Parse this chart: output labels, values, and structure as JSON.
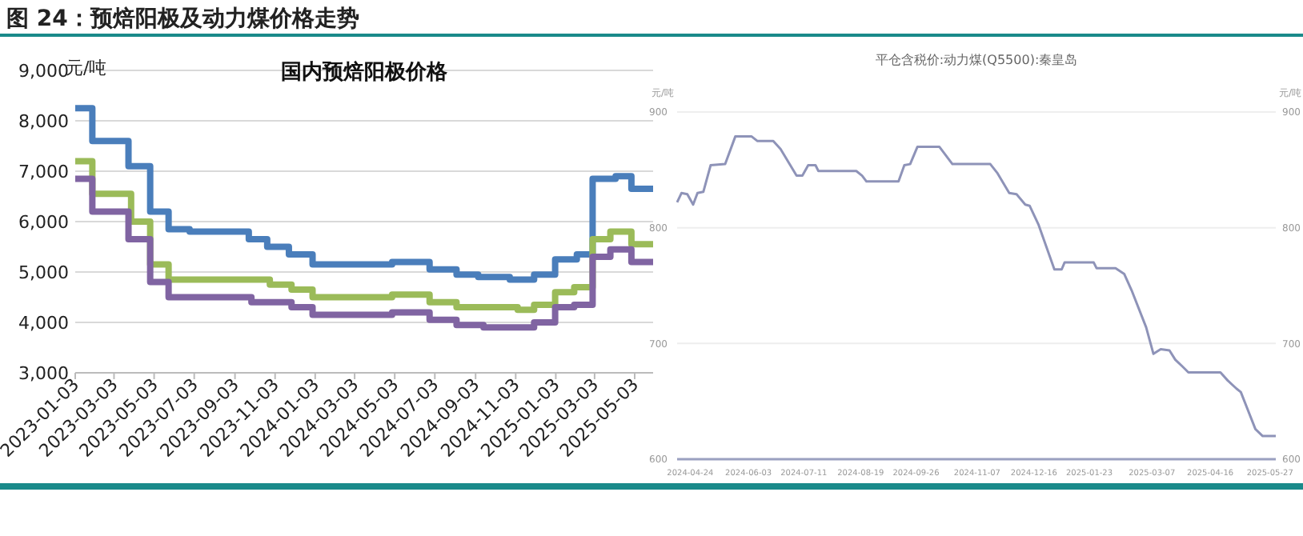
{
  "chart_data": [
    {
      "type": "step",
      "title": "图 24：预焙阳极及动力煤价格走势",
      "subtitle": "国内预焙阳极价格",
      "ylabel": "元/吨",
      "grid": "y",
      "xlim": [
        "2023-01-03",
        "2025-05-31"
      ],
      "ylim": [
        3000,
        9000
      ],
      "yticks": [
        {
          "value": 3000,
          "label": "3,000"
        },
        {
          "value": 4000,
          "label": "4,000"
        },
        {
          "value": 5000,
          "label": "5,000"
        },
        {
          "value": 6000,
          "label": "6,000"
        },
        {
          "value": 7000,
          "label": "7,000"
        },
        {
          "value": 8000,
          "label": "8,000"
        },
        {
          "value": 9000,
          "label": "9,000"
        }
      ],
      "xticks": [
        "2023-01-03",
        "2023-03-03",
        "2023-05-03",
        "2023-07-03",
        "2023-09-03",
        "2023-11-03",
        "2024-01-03",
        "2024-03-03",
        "2024-05-03",
        "2024-07-03",
        "2024-09-03",
        "2024-11-03",
        "2025-01-03",
        "2025-03-03",
        "2025-05-03"
      ],
      "series": [
        {
          "color": "#4a7ebb",
          "x": [
            "2023-01-03",
            "2023-01-29",
            "2023-03-25",
            "2023-04-27",
            "2023-05-25",
            "2023-06-26",
            "2023-09-24",
            "2023-10-22",
            "2023-11-24",
            "2023-12-30",
            "2024-04-29",
            "2024-06-25",
            "2024-08-05",
            "2024-09-07",
            "2024-10-25",
            "2024-12-01",
            "2025-01-02",
            "2025-02-04",
            "2025-02-28",
            "2025-04-04",
            "2025-04-28",
            "2025-05-31"
          ],
          "values": [
            8250,
            7600,
            7100,
            6200,
            5850,
            5800,
            5650,
            5500,
            5350,
            5150,
            5200,
            5050,
            4950,
            4900,
            4850,
            4950,
            5250,
            5350,
            6850,
            6900,
            6650,
            6650
          ]
        },
        {
          "color": "#9bbb59",
          "x": [
            "2023-01-03",
            "2023-01-29",
            "2023-03-29",
            "2023-04-27",
            "2023-05-25",
            "2023-10-26",
            "2023-11-28",
            "2023-12-30",
            "2024-04-29",
            "2024-06-25",
            "2024-08-05",
            "2024-11-06",
            "2024-12-01",
            "2025-01-02",
            "2025-01-31",
            "2025-02-28",
            "2025-03-27",
            "2025-04-28",
            "2025-05-31"
          ],
          "values": [
            7200,
            6550,
            6000,
            5150,
            4850,
            4750,
            4650,
            4500,
            4550,
            4400,
            4300,
            4250,
            4350,
            4600,
            4700,
            5650,
            5800,
            5550,
            5550
          ]
        },
        {
          "color": "#8064a2",
          "x": [
            "2023-01-03",
            "2023-01-29",
            "2023-03-25",
            "2023-04-27",
            "2023-05-25",
            "2023-09-28",
            "2023-11-28",
            "2023-12-30",
            "2024-04-29",
            "2024-06-25",
            "2024-08-05",
            "2024-09-15",
            "2024-12-01",
            "2025-01-02",
            "2025-01-31",
            "2025-02-28",
            "2025-03-27",
            "2025-04-28",
            "2025-05-31"
          ],
          "values": [
            6850,
            6200,
            5650,
            4800,
            4500,
            4400,
            4300,
            4150,
            4200,
            4050,
            3950,
            3900,
            4000,
            4300,
            4350,
            5300,
            5450,
            5200,
            5200
          ]
        }
      ]
    },
    {
      "type": "line",
      "title": "平仓含税价:动力煤(Q5500):秦皇岛",
      "ylabel": "元/吨",
      "y2label": "元/吨",
      "grid": "y",
      "xlim": [
        "2024-04-15",
        "2025-05-31"
      ],
      "ylim": [
        600,
        900
      ],
      "yticks": [
        600,
        700,
        800,
        900
      ],
      "y2lim": [
        600,
        900
      ],
      "y2ticks": [
        600,
        700,
        800,
        900
      ],
      "xticks": [
        "2024-04-24",
        "2024-06-03",
        "2024-07-11",
        "2024-08-19",
        "2024-09-26",
        "2024-11-07",
        "2024-12-16",
        "2025-01-23",
        "2025-03-07",
        "2025-04-16",
        "2025-05-27"
      ],
      "series": [
        {
          "color": "#8e93b8",
          "x": [
            "2024-04-15",
            "2024-04-18",
            "2024-04-22",
            "2024-04-26",
            "2024-04-29",
            "2024-05-03",
            "2024-05-08",
            "2024-05-18",
            "2024-05-25",
            "2024-06-05",
            "2024-06-09",
            "2024-06-20",
            "2024-06-25",
            "2024-07-06",
            "2024-07-10",
            "2024-07-14",
            "2024-07-19",
            "2024-07-21",
            "2024-08-16",
            "2024-08-20",
            "2024-08-23",
            "2024-09-14",
            "2024-09-18",
            "2024-09-22",
            "2024-09-27",
            "2024-10-12",
            "2024-10-21",
            "2024-11-16",
            "2024-11-21",
            "2024-11-29",
            "2024-12-04",
            "2024-12-10",
            "2024-12-13",
            "2024-12-19",
            "2024-12-30",
            "2025-01-04",
            "2025-01-06",
            "2025-01-26",
            "2025-01-28",
            "2025-02-10",
            "2025-02-16",
            "2025-02-21",
            "2025-03-03",
            "2025-03-08",
            "2025-03-13",
            "2025-03-19",
            "2025-03-23",
            "2025-03-28",
            "2025-04-01",
            "2025-04-23",
            "2025-04-28",
            "2025-05-04",
            "2025-05-07",
            "2025-05-17",
            "2025-05-22",
            "2025-05-31"
          ],
          "values": [
            822,
            830,
            829,
            820,
            830,
            831,
            854,
            855,
            879,
            879,
            875,
            875,
            868,
            845,
            845,
            854,
            854,
            849,
            849,
            845,
            840,
            840,
            854,
            855,
            870,
            870,
            855,
            855,
            847,
            830,
            829,
            820,
            819,
            803,
            764,
            764,
            770,
            770,
            765,
            765,
            760,
            746,
            714,
            691,
            695,
            694,
            686,
            680,
            675,
            675,
            668,
            661,
            658,
            626,
            620,
            620
          ]
        }
      ]
    }
  ]
}
